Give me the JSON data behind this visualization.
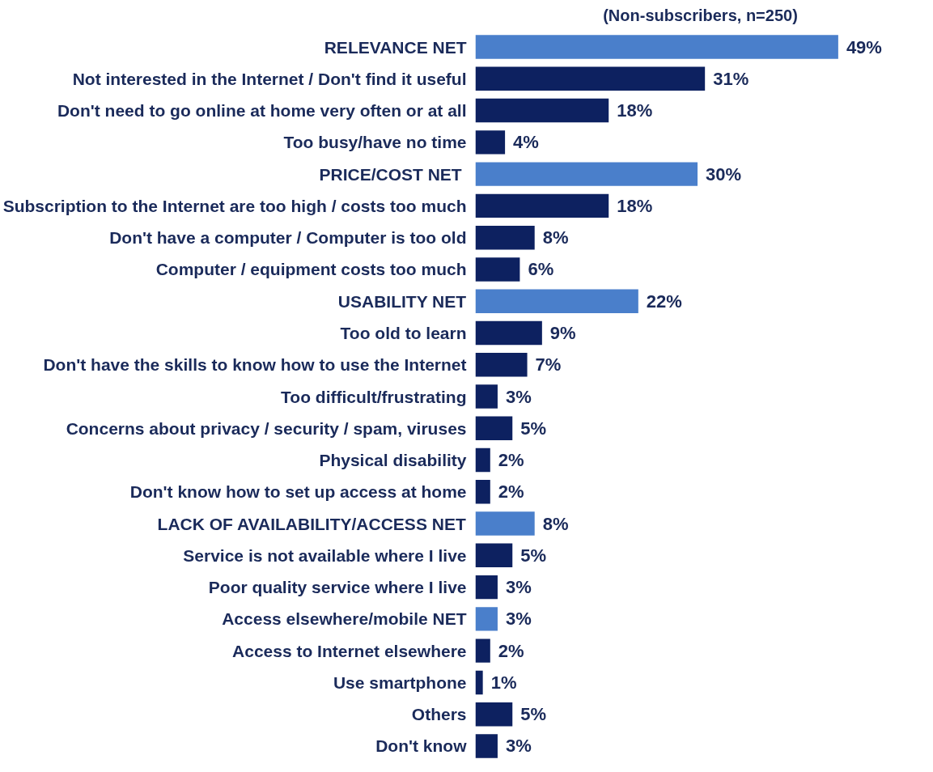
{
  "chart_data": {
    "type": "bar",
    "orientation": "horizontal",
    "title": "(Non-subscribers, n=250)",
    "categories": [
      "RELEVANCE NET",
      "Not interested in the Internet / Don't find it useful",
      "Don't need to go online at home very often or at all",
      "Too busy/have no time",
      "PRICE/COST  NET",
      "Subscription to the Internet are too high / costs too much",
      "Don't have a computer / Computer is too old",
      "Computer / equipment costs too much",
      "USABILITY NET",
      "Too old to learn",
      "Don't have the skills to know how to use the Internet",
      "Too difficult/frustrating",
      "Concerns about privacy / security / spam, viruses",
      "Physical disability",
      "Don't know how to set up access at home",
      "LACK OF AVAILABILITY/ACCESS NET",
      "Service is not available where I live",
      "Poor quality service where I live",
      "Access elsewhere/mobile NET",
      "Access to Internet elsewhere",
      "Use smartphone",
      "Others",
      "Don't know"
    ],
    "values": [
      49,
      31,
      18,
      4,
      30,
      18,
      8,
      6,
      22,
      9,
      7,
      3,
      5,
      2,
      2,
      8,
      5,
      3,
      3,
      2,
      1,
      5,
      3
    ],
    "value_labels": [
      "49%",
      "31%",
      "18%",
      "4%",
      "30%",
      "18%",
      "8%",
      "6%",
      "22%",
      "9%",
      "7%",
      "3%",
      "5%",
      "2%",
      "2%",
      "8%",
      "5%",
      "3%",
      "3%",
      "2%",
      "1%",
      "5%",
      "3%"
    ],
    "colors": [
      "#4a7fcb",
      "#0d2160",
      "#0d2160",
      "#0d2160",
      "#4a7fcb",
      "#0d2160",
      "#0d2160",
      "#0d2160",
      "#4a7fcb",
      "#0d2160",
      "#0d2160",
      "#0d2160",
      "#0d2160",
      "#0d2160",
      "#0d2160",
      "#4a7fcb",
      "#0d2160",
      "#0d2160",
      "#4a7fcb",
      "#0d2160",
      "#0d2160",
      "#0d2160",
      "#0d2160"
    ],
    "tick_labels": "y",
    "grid": false
  }
}
